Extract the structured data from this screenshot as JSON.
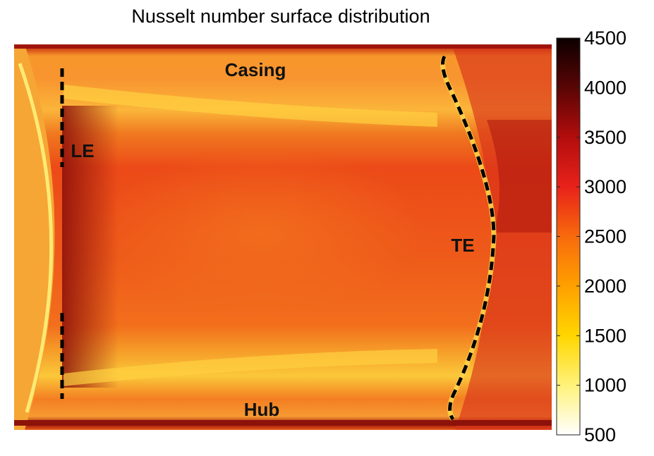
{
  "chart_data": {
    "type": "heatmap",
    "title": "Nusselt number surface distribution",
    "xlabel": "",
    "ylabel": "",
    "colorbar": {
      "min": 500,
      "max": 4500,
      "ticks": [
        500,
        1000,
        1500,
        2000,
        2500,
        3000,
        3500,
        4000,
        4500
      ],
      "colormap": "hot (reversed)",
      "colors": [
        "#ffffff",
        "#fff27a",
        "#ffd600",
        "#ffa000",
        "#f86a0c",
        "#e8221a",
        "#b30d0d",
        "#5a0505",
        "#0d0000"
      ]
    },
    "annotations": [
      {
        "text": "Casing",
        "kind": "label"
      },
      {
        "text": "Hub",
        "kind": "label"
      },
      {
        "text": "LE",
        "kind": "label",
        "line": "dashed vertical line"
      },
      {
        "text": "TE",
        "kind": "label",
        "line": "dashed curved line"
      }
    ],
    "regions": [
      {
        "name": "core passage",
        "nusselt": 2900
      },
      {
        "name": "casing band",
        "nusselt": 2100
      },
      {
        "name": "hub band",
        "nusselt": 2000
      },
      {
        "name": "upstream of LE",
        "nusselt": 1800
      },
      {
        "name": "downstream of TE",
        "nusselt": 3300
      },
      {
        "name": "near-wall dark bands",
        "nusselt": 4000
      }
    ]
  }
}
